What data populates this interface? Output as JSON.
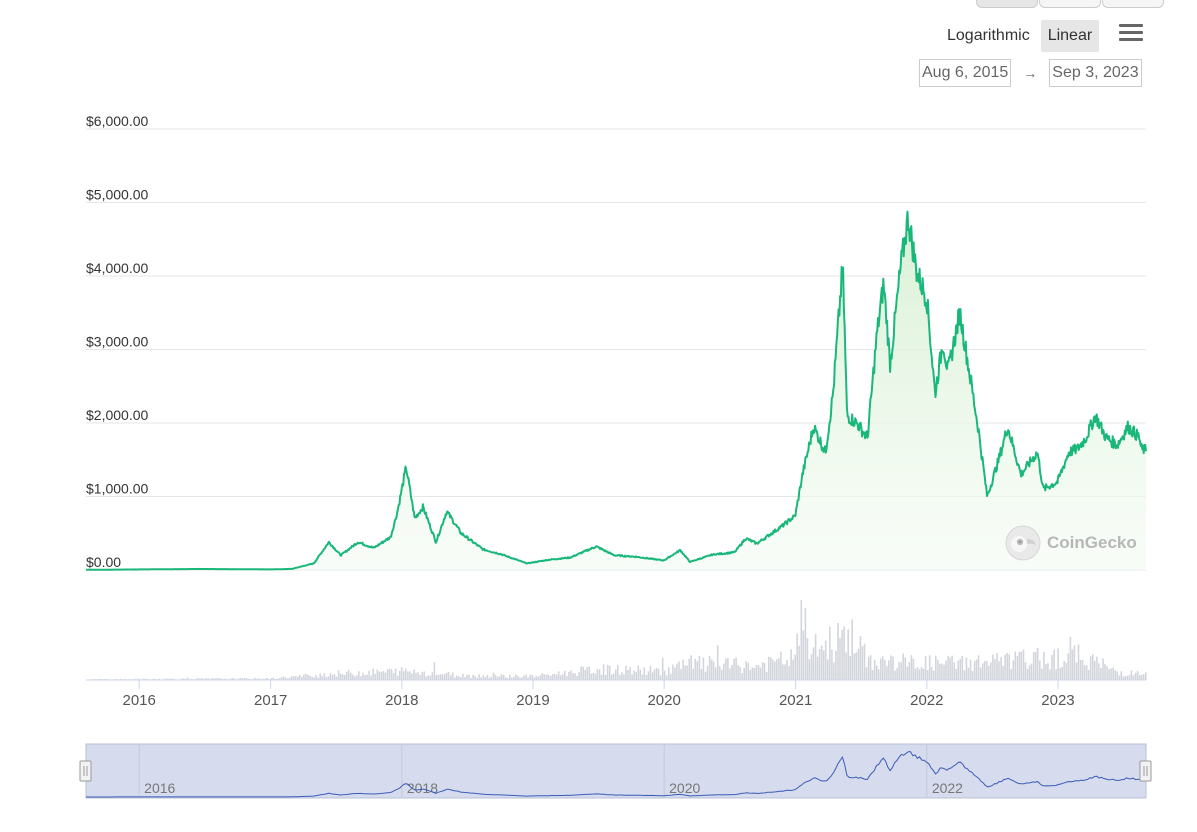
{
  "controls": {
    "scale_options": [
      "Logarithmic",
      "Linear"
    ],
    "active_scale": "Linear",
    "menu_icon": "hamburger-menu-icon",
    "date_from": "Aug 6, 2015",
    "date_to": "Sep 3, 2023",
    "arrow": "→"
  },
  "watermark": "CoinGecko",
  "colors": {
    "line": "#1ab77b",
    "area_top": "#d7f0d3",
    "volume": "#d3d5dc",
    "navigator_line": "#3b5bb8",
    "navigator_bg": "#d6dced"
  },
  "chart_data": {
    "type": "area",
    "title": "",
    "xlabel": "",
    "ylabel": "",
    "ylim": [
      0,
      6000
    ],
    "y_ticks": [
      "$0.00",
      "$1,000.00",
      "$2,000.00",
      "$3,000.00",
      "$4,000.00",
      "$5,000.00",
      "$6,000.00"
    ],
    "y_tick_values": [
      0,
      1000,
      2000,
      3000,
      4000,
      5000,
      6000
    ],
    "x_range": [
      "2015-08-06",
      "2023-09-03"
    ],
    "x_ticks": [
      "2016",
      "2017",
      "2018",
      "2019",
      "2020",
      "2021",
      "2022",
      "2023"
    ],
    "x_tick_dates": [
      "2016-01-01",
      "2017-01-01",
      "2018-01-01",
      "2019-01-01",
      "2020-01-01",
      "2021-01-01",
      "2022-01-01",
      "2023-01-01"
    ],
    "navigator_ticks": [
      "2016",
      "2018",
      "2020",
      "2022"
    ],
    "navigator_tick_dates": [
      "2016-01-01",
      "2018-01-01",
      "2020-01-01",
      "2022-01-01"
    ],
    "series": [
      {
        "values": [
          [
            "2015-08-06",
            2
          ],
          [
            "2016-03-01",
            10
          ],
          [
            "2016-06-15",
            14
          ],
          [
            "2016-12-31",
            8
          ],
          [
            "2017-03-01",
            15
          ],
          [
            "2017-05-01",
            90
          ],
          [
            "2017-06-12",
            380
          ],
          [
            "2017-07-15",
            200
          ],
          [
            "2017-09-01",
            380
          ],
          [
            "2017-10-15",
            300
          ],
          [
            "2017-12-01",
            450
          ],
          [
            "2017-12-20",
            800
          ],
          [
            "2018-01-13",
            1400
          ],
          [
            "2018-02-06",
            700
          ],
          [
            "2018-03-01",
            860
          ],
          [
            "2018-04-06",
            380
          ],
          [
            "2018-05-06",
            800
          ],
          [
            "2018-06-15",
            500
          ],
          [
            "2018-08-15",
            280
          ],
          [
            "2018-10-01",
            220
          ],
          [
            "2018-12-15",
            90
          ],
          [
            "2019-02-15",
            140
          ],
          [
            "2019-04-15",
            170
          ],
          [
            "2019-06-26",
            320
          ],
          [
            "2019-08-15",
            200
          ],
          [
            "2019-10-15",
            180
          ],
          [
            "2019-12-31",
            130
          ],
          [
            "2020-02-15",
            270
          ],
          [
            "2020-03-13",
            110
          ],
          [
            "2020-05-15",
            210
          ],
          [
            "2020-07-15",
            240
          ],
          [
            "2020-08-15",
            430
          ],
          [
            "2020-09-15",
            360
          ],
          [
            "2020-11-25",
            600
          ],
          [
            "2020-12-31",
            740
          ],
          [
            "2021-01-20",
            1300
          ],
          [
            "2021-02-20",
            1950
          ],
          [
            "2021-03-25",
            1600
          ],
          [
            "2021-04-15",
            2400
          ],
          [
            "2021-05-12",
            4150
          ],
          [
            "2021-05-24",
            2100
          ],
          [
            "2021-06-20",
            2000
          ],
          [
            "2021-07-20",
            1800
          ],
          [
            "2021-08-15",
            3200
          ],
          [
            "2021-09-03",
            3900
          ],
          [
            "2021-09-21",
            2800
          ],
          [
            "2021-10-20",
            4100
          ],
          [
            "2021-11-10",
            4800
          ],
          [
            "2021-12-04",
            4050
          ],
          [
            "2022-01-01",
            3700
          ],
          [
            "2022-01-24",
            2400
          ],
          [
            "2022-02-15",
            3100
          ],
          [
            "2022-03-01",
            2700
          ],
          [
            "2022-04-03",
            3500
          ],
          [
            "2022-05-09",
            2400
          ],
          [
            "2022-05-25",
            1900
          ],
          [
            "2022-06-18",
            1000
          ],
          [
            "2022-07-20",
            1500
          ],
          [
            "2022-08-14",
            1950
          ],
          [
            "2022-09-20",
            1300
          ],
          [
            "2022-11-05",
            1600
          ],
          [
            "2022-11-21",
            1100
          ],
          [
            "2022-12-31",
            1200
          ],
          [
            "2023-01-31",
            1600
          ],
          [
            "2023-02-25",
            1650
          ],
          [
            "2023-03-20",
            1800
          ],
          [
            "2023-04-15",
            2100
          ],
          [
            "2023-05-15",
            1800
          ],
          [
            "2023-06-15",
            1700
          ],
          [
            "2023-07-15",
            1950
          ],
          [
            "2023-08-16",
            1800
          ],
          [
            "2023-08-20",
            1650
          ],
          [
            "2023-09-03",
            1630
          ]
        ]
      }
    ],
    "volume_series": {
      "note_free": true,
      "values": [
        [
          "2015-08-06",
          1
        ],
        [
          "2016-12-31",
          2
        ],
        [
          "2017-06-12",
          8
        ],
        [
          "2018-01-13",
          12
        ],
        [
          "2018-06-15",
          6
        ],
        [
          "2019-01-01",
          5
        ],
        [
          "2019-06-26",
          14
        ],
        [
          "2020-01-01",
          12
        ],
        [
          "2020-03-13",
          22
        ],
        [
          "2020-09-15",
          18
        ],
        [
          "2020-12-31",
          30
        ],
        [
          "2021-01-10",
          78
        ],
        [
          "2021-02-20",
          40
        ],
        [
          "2021-05-12",
          55
        ],
        [
          "2021-05-19",
          66
        ],
        [
          "2021-07-20",
          25
        ],
        [
          "2022-01-24",
          22
        ],
        [
          "2022-06-18",
          24
        ],
        [
          "2023-03-10",
          32
        ],
        [
          "2023-06-15",
          10
        ],
        [
          "2023-09-03",
          8
        ]
      ]
    }
  }
}
